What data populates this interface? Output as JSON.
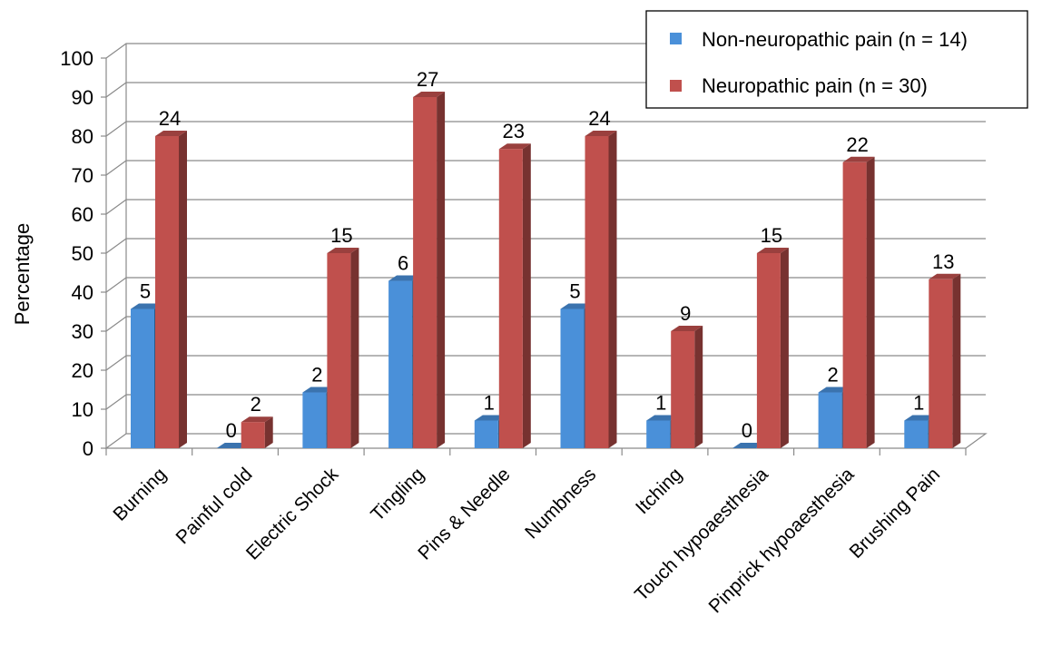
{
  "chart_data": {
    "type": "bar",
    "title": "",
    "xlabel": "",
    "ylabel": "Percentage",
    "ylim": [
      0,
      100
    ],
    "yticks": [
      0,
      10,
      20,
      30,
      40,
      50,
      60,
      70,
      80,
      90,
      100
    ],
    "grid": true,
    "three_d": true,
    "legend_position": "top-right",
    "categories": [
      "Burning",
      "Painful cold",
      "Electric Shock",
      "Tingling",
      "Pins & Needle",
      "Numbness",
      "Itching",
      "Touch hypoaesthesia",
      "Pinprick hypoaesthesia",
      "Brushing Pain"
    ],
    "series": [
      {
        "name": "Non-neuropathic pain (n = 14)",
        "color": "#4a90d9",
        "values": [
          35.7,
          0,
          14.3,
          42.9,
          7.1,
          35.7,
          7.1,
          0,
          14.3,
          7.1
        ],
        "labels": [
          "5",
          "0",
          "2",
          "6",
          "1",
          "5",
          "1",
          "0",
          "2",
          "1"
        ]
      },
      {
        "name": "Neuropathic pain (n = 30)",
        "color": "#c0504d",
        "values": [
          80,
          6.7,
          50,
          90,
          76.7,
          80,
          30,
          50,
          73.3,
          43.3
        ],
        "labels": [
          "24",
          "2",
          "15",
          "27",
          "23",
          "24",
          "9",
          "15",
          "22",
          "13"
        ]
      }
    ]
  }
}
